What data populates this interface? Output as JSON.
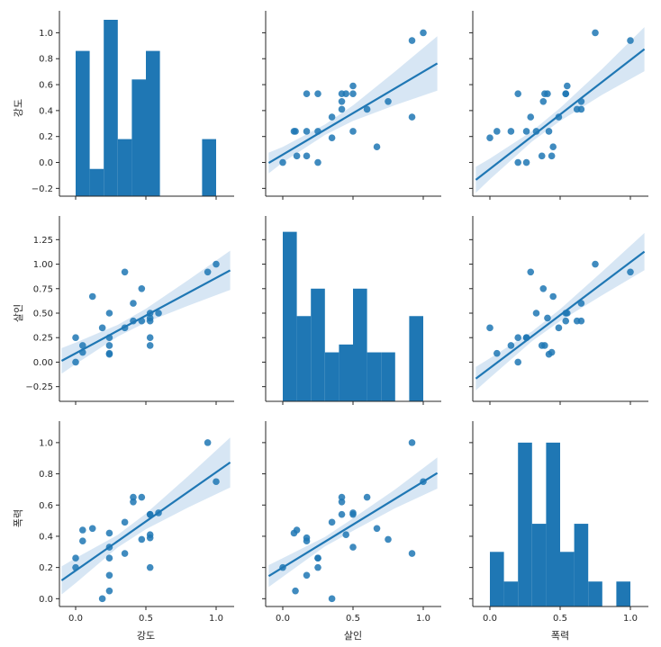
{
  "chart_data": {
    "type": "pairplot",
    "variables": [
      "강도",
      "살인",
      "폭력"
    ],
    "colors": {
      "primary": "#1f77b4",
      "band": "#c6dbef",
      "axis": "#262626"
    },
    "columns": [
      {
        "name": "강도",
        "lim": [
          -0.1,
          1.1
        ],
        "ticks": [
          0.0,
          0.5,
          1.0
        ],
        "tick_labels": [
          "0.0",
          "0.5",
          "1.0"
        ]
      },
      {
        "name": "살인",
        "lim": [
          -0.1,
          1.1
        ],
        "ticks": [
          0.0,
          0.5,
          1.0
        ],
        "tick_labels": [
          "0.0",
          "0.5",
          "1.0"
        ]
      },
      {
        "name": "폭력",
        "lim": [
          -0.1,
          1.1
        ],
        "ticks": [
          0.0,
          0.5,
          1.0
        ],
        "tick_labels": [
          "0.0",
          "0.5",
          "1.0"
        ]
      }
    ],
    "rows": [
      {
        "name": "강도",
        "lim": [
          -0.26,
          1.1
        ],
        "ticks": [
          -0.2,
          0.0,
          0.2,
          0.4,
          0.6,
          0.8,
          1.0
        ],
        "tick_labels": [
          "−0.2",
          "0.0",
          "0.2",
          "0.4",
          "0.6",
          "0.8",
          "1.0"
        ]
      },
      {
        "name": "살인",
        "lim": [
          -0.4,
          1.4
        ],
        "ticks": [
          -0.25,
          0.0,
          0.25,
          0.5,
          0.75,
          1.0,
          1.25
        ],
        "tick_labels": [
          "−0.25",
          "0.00",
          "0.25",
          "0.50",
          "0.75",
          "1.00",
          "1.25"
        ]
      },
      {
        "name": "폭력",
        "lim": [
          -0.05,
          1.08
        ],
        "ticks": [
          0.0,
          0.2,
          0.4,
          0.6,
          0.8,
          1.0
        ],
        "tick_labels": [
          "0.0",
          "0.2",
          "0.4",
          "0.6",
          "0.8",
          "1.0"
        ]
      }
    ],
    "histograms": [
      {
        "variable": "강도",
        "bins": [
          0.0,
          0.1,
          0.2,
          0.3,
          0.4,
          0.5,
          0.6,
          0.7,
          0.8,
          0.9,
          1.0
        ],
        "heights": [
          0.86,
          -0.05,
          1.1,
          0.18,
          0.64,
          0.86,
          0,
          0,
          0,
          0.18
        ]
      },
      {
        "variable": "살인",
        "bins": [
          0.0,
          0.1,
          0.2,
          0.3,
          0.4,
          0.5,
          0.6,
          0.7,
          0.8,
          0.9,
          1.0
        ],
        "heights": [
          1.33,
          0.47,
          0.75,
          0.1,
          0.18,
          0.75,
          0.1,
          0.1,
          0,
          0.47
        ]
      },
      {
        "variable": "폭력",
        "bins": [
          0.0,
          0.1,
          0.2,
          0.3,
          0.4,
          0.5,
          0.6,
          0.7,
          0.8,
          0.9,
          1.0
        ],
        "heights": [
          0.3,
          0.11,
          1.0,
          0.48,
          1.0,
          0.3,
          0.48,
          0.11,
          0,
          0.11
        ]
      }
    ],
    "points": {
      "강도": [
        0.0,
        0.0,
        0.05,
        0.05,
        0.12,
        0.19,
        0.24,
        0.24,
        0.24,
        0.24,
        0.24,
        0.35,
        0.35,
        0.41,
        0.41,
        0.47,
        0.47,
        0.53,
        0.53,
        0.53,
        0.53,
        0.53,
        0.59,
        0.94,
        1.0
      ],
      "살인": [
        0.0,
        0.25,
        0.1,
        0.17,
        0.67,
        0.35,
        0.5,
        0.25,
        0.17,
        0.09,
        0.08,
        0.92,
        0.35,
        0.6,
        0.42,
        0.75,
        0.42,
        0.5,
        0.25,
        0.17,
        0.45,
        0.42,
        0.5,
        0.92,
        1.0
      ],
      "폭력": [
        0.2,
        0.26,
        0.44,
        0.37,
        0.45,
        0.0,
        0.33,
        0.26,
        0.15,
        0.05,
        0.42,
        0.29,
        0.49,
        0.65,
        0.62,
        0.38,
        0.65,
        0.54,
        0.2,
        0.39,
        0.41,
        0.54,
        0.55,
        1.0,
        0.75
      ]
    },
    "regressions": {
      "0-1": {
        "slope": 0.64,
        "intercept": 0.06,
        "band": [
          [
            -0.1,
            0.08
          ],
          [
            0.0,
            0.06
          ],
          [
            0.3,
            0.04
          ],
          [
            0.5,
            0.06
          ],
          [
            0.8,
            0.13
          ],
          [
            1.1,
            0.21
          ]
        ]
      },
      "0-2": {
        "slope": 0.84,
        "intercept": -0.05,
        "band": [
          [
            -0.1,
            0.1
          ],
          [
            0.0,
            0.08
          ],
          [
            0.3,
            0.04
          ],
          [
            0.5,
            0.05
          ],
          [
            0.8,
            0.1
          ],
          [
            1.1,
            0.17
          ]
        ]
      },
      "1-0": {
        "slope": 0.77,
        "intercept": 0.09,
        "band": [
          [
            -0.1,
            0.13
          ],
          [
            0.0,
            0.11
          ],
          [
            0.3,
            0.06
          ],
          [
            0.5,
            0.07
          ],
          [
            0.8,
            0.13
          ],
          [
            1.1,
            0.2
          ]
        ]
      },
      "1-2": {
        "slope": 1.08,
        "intercept": -0.06,
        "band": [
          [
            -0.1,
            0.12
          ],
          [
            0.0,
            0.1
          ],
          [
            0.3,
            0.05
          ],
          [
            0.5,
            0.06
          ],
          [
            0.8,
            0.12
          ],
          [
            1.1,
            0.19
          ]
        ]
      },
      "2-0": {
        "slope": 0.63,
        "intercept": 0.18,
        "band": [
          [
            -0.1,
            0.09
          ],
          [
            0.0,
            0.08
          ],
          [
            0.3,
            0.04
          ],
          [
            0.5,
            0.05
          ],
          [
            0.8,
            0.1
          ],
          [
            1.1,
            0.16
          ]
        ]
      },
      "2-1": {
        "slope": 0.55,
        "intercept": 0.2,
        "band": [
          [
            -0.1,
            0.07
          ],
          [
            0.0,
            0.06
          ],
          [
            0.3,
            0.03
          ],
          [
            0.5,
            0.04
          ],
          [
            0.8,
            0.06
          ],
          [
            1.1,
            0.1
          ]
        ]
      }
    }
  }
}
